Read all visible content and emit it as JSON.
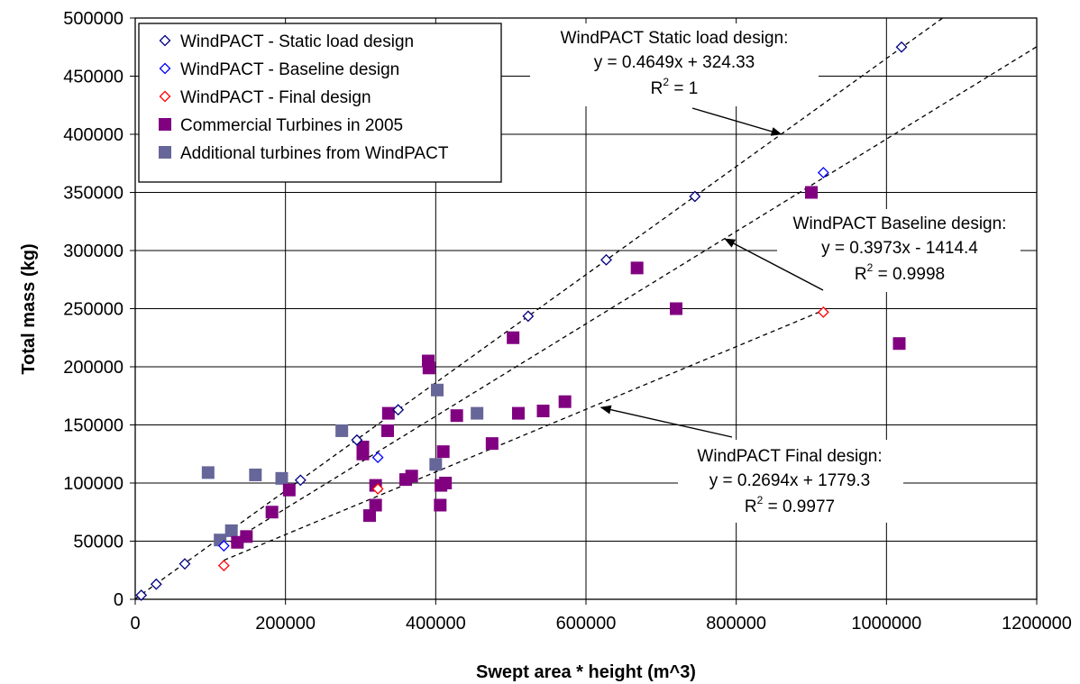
{
  "chart_data": {
    "type": "scatter",
    "title": "",
    "xlabel": "Swept area * height (m^3)",
    "ylabel": "Total mass (kg)",
    "xlim": [
      0,
      1200000
    ],
    "ylim": [
      0,
      500000
    ],
    "x_ticks": [
      "0",
      "200000",
      "400000",
      "600000",
      "800000",
      "1000000",
      "1200000"
    ],
    "y_ticks": [
      "0",
      "50000",
      "100000",
      "150000",
      "200000",
      "250000",
      "300000",
      "350000",
      "400000",
      "450000",
      "500000"
    ],
    "grid": true,
    "legend_position": "top-left",
    "series": [
      {
        "name": "WindPACT - Static load design",
        "marker": "diamond-open",
        "color": "#000080",
        "points": [
          [
            8000,
            3500
          ],
          [
            28000,
            13000
          ],
          [
            66000,
            30500
          ],
          [
            220000,
            102500
          ],
          [
            295000,
            137000
          ],
          [
            350000,
            163000
          ],
          [
            523000,
            243500
          ],
          [
            627000,
            292000
          ],
          [
            745000,
            346500
          ],
          [
            1020000,
            475000
          ]
        ]
      },
      {
        "name": "WindPACT - Baseline design",
        "marker": "diamond-open",
        "color": "#0000ff",
        "points": [
          [
            118000,
            46000
          ],
          [
            323000,
            122000
          ],
          [
            916000,
            367000
          ]
        ]
      },
      {
        "name": "WindPACT - Final design",
        "marker": "diamond-open",
        "color": "#ff0000",
        "points": [
          [
            118000,
            29000
          ],
          [
            323000,
            95000
          ],
          [
            916000,
            247000
          ]
        ]
      },
      {
        "name": "Commercial Turbines in 2005",
        "marker": "square-filled",
        "color": "#800080",
        "points": [
          [
            136000,
            49000
          ],
          [
            148000,
            54000
          ],
          [
            182000,
            75000
          ],
          [
            205000,
            94000
          ],
          [
            303000,
            125000
          ],
          [
            303000,
            131000
          ],
          [
            312000,
            72000
          ],
          [
            320000,
            98000
          ],
          [
            320000,
            81000
          ],
          [
            336000,
            145000
          ],
          [
            337000,
            160000
          ],
          [
            360000,
            103000
          ],
          [
            368000,
            106000
          ],
          [
            390000,
            205000
          ],
          [
            391000,
            199000
          ],
          [
            406000,
            81000
          ],
          [
            407000,
            98000
          ],
          [
            410000,
            127000
          ],
          [
            413000,
            100000
          ],
          [
            428000,
            158000
          ],
          [
            475000,
            134000
          ],
          [
            503000,
            225000
          ],
          [
            510000,
            160000
          ],
          [
            543000,
            162000
          ],
          [
            572000,
            170000
          ],
          [
            668000,
            285000
          ],
          [
            720000,
            250000
          ],
          [
            900000,
            350000
          ],
          [
            1017000,
            220000
          ]
        ]
      },
      {
        "name": "Additional turbines from WindPACT",
        "marker": "square-filled",
        "color": "#666699",
        "points": [
          [
            97000,
            109000
          ],
          [
            113000,
            51000
          ],
          [
            128000,
            59000
          ],
          [
            160000,
            107000
          ],
          [
            195000,
            104000
          ],
          [
            275000,
            145000
          ],
          [
            400000,
            116000
          ],
          [
            402000,
            180000
          ],
          [
            455000,
            160000
          ]
        ]
      }
    ],
    "trendlines": [
      {
        "label": "WindPACT Static load design",
        "slope": 0.4649,
        "intercept": 324.33,
        "x_range": [
          0,
          1085000
        ]
      },
      {
        "label": "WindPACT Baseline design",
        "slope": 0.3973,
        "intercept": -1414.4,
        "x_range": [
          118000,
          1200000
        ]
      },
      {
        "label": "WindPACT Final design",
        "slope": 0.2694,
        "intercept": 1779.3,
        "x_range": [
          118000,
          916000
        ]
      }
    ],
    "annotations": [
      {
        "lines": [
          "WindPACT Static load design:",
          "y = 0.4649x + 324.33"
        ],
        "r2": "R",
        "r2_sup": "2",
        "r2_value": " = 1",
        "arrow_to": [
          860000,
          400000
        ]
      },
      {
        "lines": [
          "WindPACT Baseline design:",
          "y = 0.3973x - 1414.4"
        ],
        "r2": "R",
        "r2_sup": "2",
        "r2_value": " = 0.9998",
        "arrow_to": [
          785000,
          310000
        ]
      },
      {
        "lines": [
          "WindPACT Final design:",
          "y = 0.2694x + 1779.3"
        ],
        "r2": "R",
        "r2_sup": "2",
        "r2_value": " = 0.9977",
        "arrow_to": [
          620000,
          165000
        ]
      }
    ]
  }
}
